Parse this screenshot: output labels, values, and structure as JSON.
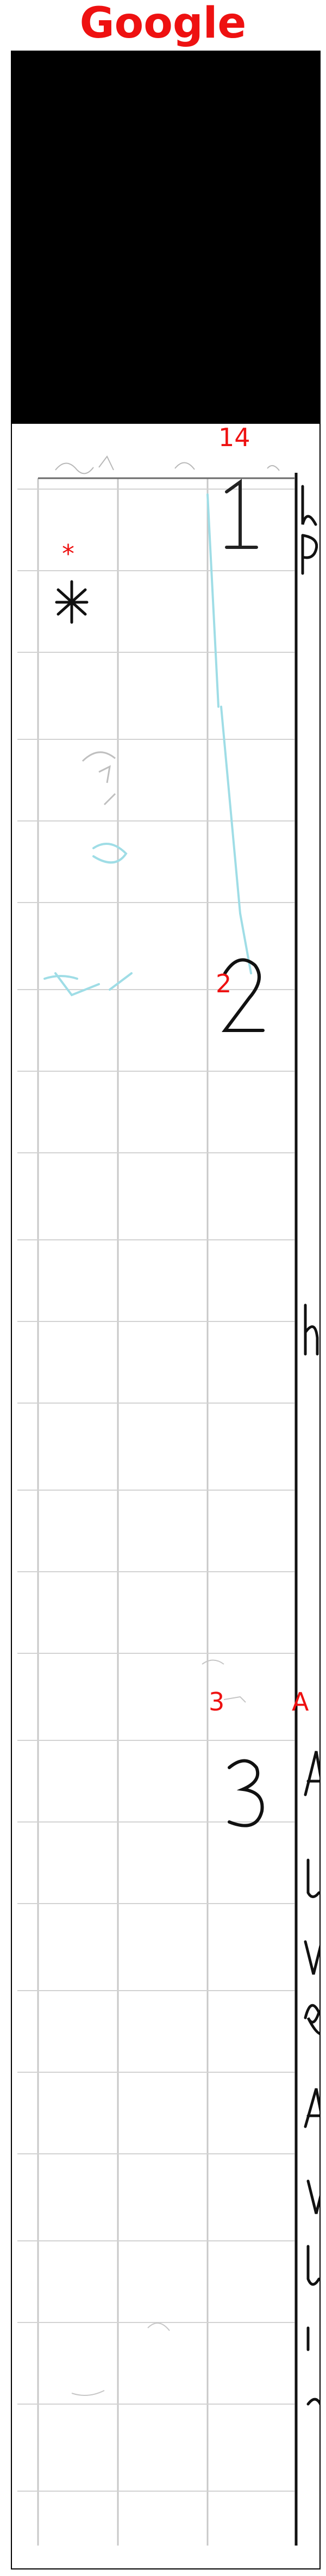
{
  "header": {
    "title": "Google"
  },
  "annotations": {
    "label_1": "14",
    "label_star": "*",
    "label_2": "2",
    "label_3": "3",
    "label_a": "A"
  },
  "colors": {
    "title": "#ee1111",
    "annotation": "#ee1111",
    "ink": "#111111",
    "grid": "#bfbfbf",
    "faded_ink": "#9fdde6"
  }
}
